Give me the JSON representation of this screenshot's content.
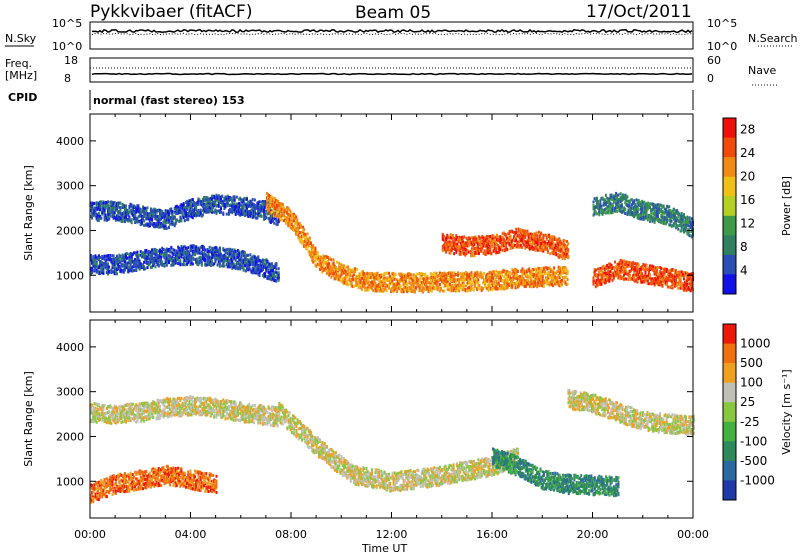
{
  "header": {
    "station": "Pykkvibaer (fitACF)",
    "beam": "Beam 05",
    "date": "17/Oct/2011"
  },
  "sky_panel": {
    "label": "N.Sky",
    "right_label": "N.Search",
    "left_ticks": [
      "10^5",
      "10^0"
    ],
    "right_ticks": [
      "10^5",
      "10^0"
    ]
  },
  "freq_panel": {
    "label_line1": "Freq.",
    "label_line2": "[MHz]",
    "right_label": "Nave",
    "left_ticks": [
      "18",
      "8"
    ],
    "right_ticks": [
      "60",
      "0"
    ]
  },
  "cpid": {
    "label": "CPID",
    "text": "normal (fast stereo) 153"
  },
  "chart_data": [
    {
      "type": "heatmap",
      "name": "power",
      "xlabel": "Time UT",
      "ylabel": "Slant Range [km]",
      "x_ticks": [
        "00:00",
        "04:00",
        "08:00",
        "12:00",
        "16:00",
        "20:00",
        "00:00"
      ],
      "x_range_hours": [
        0,
        24
      ],
      "y_ticks": [
        1000,
        2000,
        3000,
        4000
      ],
      "ylim": [
        180,
        4600
      ],
      "colorbar": {
        "label": "Power [dB]",
        "ticks": [
          4,
          8,
          12,
          16,
          20,
          24,
          28
        ],
        "range": [
          0,
          30
        ],
        "colors": [
          "#1010e8",
          "#2a4eb4",
          "#2f8060",
          "#3c9a48",
          "#b4d022",
          "#f0c018",
          "#f08a14",
          "#f04a0c",
          "#ee1008"
        ]
      },
      "bands": [
        {
          "range": [
            2400,
            2400,
            2300,
            2200,
            2450,
            2550,
            2500,
            2400,
            2250
          ],
          "times": [
            0,
            1,
            2,
            3,
            4,
            5,
            6,
            7,
            7.5
          ],
          "level": 1
        },
        {
          "range": [
            1200,
            1200,
            1300,
            1380,
            1420,
            1380,
            1300,
            1000
          ],
          "times": [
            0,
            1,
            2,
            3,
            4,
            5,
            6,
            7.5
          ],
          "level": 1
        },
        {
          "range": [
            2600,
            2200,
            1800,
            1300,
            1000,
            820,
            800,
            800,
            820,
            820,
            850,
            900,
            950
          ],
          "times": [
            7,
            8,
            8.5,
            9,
            10,
            11,
            12,
            13,
            14,
            15,
            16,
            17,
            19
          ],
          "level": 6
        },
        {
          "range": [
            1700,
            1600,
            1650,
            1800,
            1700,
            1500
          ],
          "times": [
            14,
            15,
            16,
            17,
            18,
            19
          ],
          "level": 7
        },
        {
          "range": [
            2500,
            2600,
            2400,
            2300,
            2000
          ],
          "times": [
            20,
            21,
            22,
            23,
            24
          ],
          "level": 2
        },
        {
          "range": [
            900,
            1100,
            1000,
            900,
            800
          ],
          "times": [
            20,
            21,
            22,
            23,
            24
          ],
          "level": 7
        }
      ]
    },
    {
      "type": "heatmap",
      "name": "velocity",
      "xlabel": "Time UT",
      "ylabel": "Slant Range [km]",
      "x_ticks": [
        "00:00",
        "04:00",
        "08:00",
        "12:00",
        "16:00",
        "20:00",
        "00:00"
      ],
      "x_range_hours": [
        0,
        24
      ],
      "y_ticks": [
        1000,
        2000,
        3000,
        4000
      ],
      "ylim": [
        180,
        4600
      ],
      "colorbar": {
        "label": "Velocity [m s⁻¹]",
        "ticks": [
          "1000",
          "500",
          "100",
          "25",
          "-25",
          "-100",
          "-500",
          "-1000"
        ],
        "colors": [
          "#1e3aa8",
          "#2a6aa0",
          "#2e8a5a",
          "#44b03e",
          "#88c840",
          "#c0c0b8",
          "#f0a020",
          "#f07010",
          "#ee1808"
        ]
      },
      "bands": [
        {
          "range": [
            2500,
            2450,
            2500,
            2600,
            2650,
            2600,
            2500,
            2400
          ],
          "times": [
            0,
            1,
            2,
            3,
            4,
            5,
            6,
            7.5
          ],
          "level": 5
        },
        {
          "range": [
            700,
            900,
            1000,
            1100,
            1000,
            900
          ],
          "times": [
            0,
            1,
            2,
            3,
            4,
            5
          ],
          "level": 7
        },
        {
          "range": [
            2500,
            2000,
            1500,
            1100,
            950,
            1050,
            1200,
            1300,
            1500
          ],
          "times": [
            7.5,
            8.5,
            9.5,
            10.5,
            12,
            13.5,
            15,
            16,
            17
          ],
          "level": 5
        },
        {
          "range": [
            1500,
            1300,
            1000,
            900,
            850
          ],
          "times": [
            16,
            17,
            18,
            19,
            21
          ],
          "level": 2
        },
        {
          "range": [
            2800,
            2700,
            2500,
            2300,
            2200
          ],
          "times": [
            19,
            20,
            21,
            22,
            24
          ],
          "level": 5
        }
      ]
    }
  ]
}
